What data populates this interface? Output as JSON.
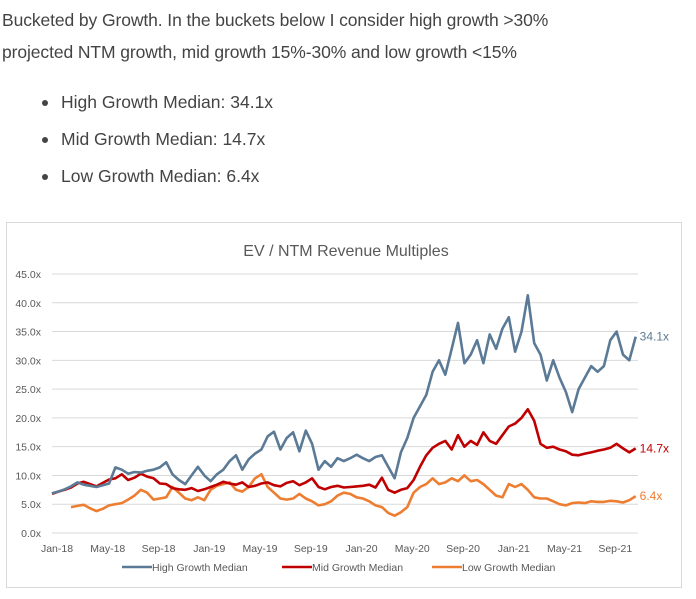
{
  "intro": {
    "line1": "Bucketed by Growth. In the buckets below I consider high growth >30%",
    "line2": "projected NTM growth, mid growth 15%-30% and low growth <15%"
  },
  "bullets": [
    "High Growth Median: 34.1x",
    "Mid Growth Median: 14.7x",
    "Low Growth Median: 6.4x"
  ],
  "chart_data": {
    "type": "line",
    "title": "EV / NTM Revenue Multiples",
    "xlabel": "",
    "ylabel": "",
    "ylim": [
      0,
      45
    ],
    "yticks": [
      "0.0x",
      "5.0x",
      "10.0x",
      "15.0x",
      "20.0x",
      "25.0x",
      "30.0x",
      "35.0x",
      "40.0x",
      "45.0x"
    ],
    "ytick_values": [
      0,
      5,
      10,
      15,
      20,
      25,
      30,
      35,
      40,
      45
    ],
    "xticks": [
      "Jan-18",
      "May-18",
      "Sep-18",
      "Jan-19",
      "May-19",
      "Sep-19",
      "Jan-20",
      "May-20",
      "Sep-20",
      "Jan-21",
      "May-21",
      "Sep-21"
    ],
    "xtick_months": [
      0,
      4,
      8,
      12,
      16,
      20,
      24,
      28,
      32,
      36,
      40,
      44
    ],
    "x_range_months": [
      0,
      46.5
    ],
    "grid": true,
    "legend_position": "bottom",
    "x_unit": "months since Jan-2018",
    "x": [
      0,
      0.5,
      1,
      1.5,
      2,
      2.5,
      3,
      3.5,
      4,
      4.5,
      5,
      5.5,
      6,
      6.5,
      7,
      7.5,
      8,
      8.5,
      9,
      9.5,
      10,
      10.5,
      11,
      11.5,
      12,
      12.5,
      13,
      13.5,
      14,
      14.5,
      15,
      15.5,
      16,
      16.5,
      17,
      17.5,
      18,
      18.5,
      19,
      19.5,
      20,
      20.5,
      21,
      21.5,
      22,
      22.5,
      23,
      23.5,
      24,
      24.5,
      25,
      25.5,
      26,
      26.5,
      27,
      27.5,
      28,
      28.5,
      29,
      29.5,
      30,
      30.5,
      31,
      31.5,
      32,
      32.5,
      33,
      33.5,
      34,
      34.5,
      35,
      35.5,
      36,
      36.5,
      37,
      37.5,
      38,
      38.5,
      39,
      39.5,
      40,
      40.5,
      41,
      41.5,
      42,
      42.5,
      43,
      43.5,
      44,
      44.5,
      45,
      45.5,
      46
    ],
    "series": [
      {
        "name": "High Growth Median",
        "color": "#5b7a95",
        "end_label": "34.1x",
        "values": [
          6.9,
          7.2,
          7.6,
          8.1,
          8.8,
          8.4,
          8.2,
          8.0,
          8.3,
          8.6,
          11.4,
          11.0,
          10.3,
          10.6,
          10.5,
          10.8,
          11.0,
          11.4,
          12.3,
          10.2,
          9.2,
          8.5,
          10.0,
          11.5,
          10.0,
          9.0,
          10.2,
          11.0,
          12.5,
          13.5,
          11.0,
          12.8,
          13.8,
          14.5,
          16.8,
          17.6,
          14.5,
          16.5,
          17.5,
          14.2,
          17.8,
          15.5,
          11.0,
          12.5,
          11.5,
          13.0,
          12.5,
          13.0,
          13.6,
          13.0,
          12.5,
          13.2,
          13.5,
          11.5,
          9.5,
          14.0,
          16.5,
          20.0,
          22.0,
          24.0,
          28.0,
          30.0,
          27.5,
          32.0,
          36.5,
          29.5,
          31.0,
          33.5,
          29.5,
          34.5,
          32.0,
          35.5,
          37.5,
          31.5,
          35.0,
          41.3,
          33.0,
          31.0,
          26.5,
          30.0,
          27.0,
          24.5,
          21.0,
          25.0,
          27.0,
          29.0,
          28.0,
          29.0,
          33.5,
          35.0,
          31.0,
          30.0,
          34.1
        ]
      },
      {
        "name": "Mid Growth Median",
        "color": "#c00000",
        "end_label": "14.7x",
        "values": [
          6.8,
          7.2,
          7.5,
          7.9,
          8.6,
          8.9,
          8.5,
          8.1,
          8.7,
          9.3,
          9.5,
          10.2,
          9.2,
          9.6,
          10.3,
          9.8,
          9.5,
          8.6,
          8.5,
          7.8,
          7.6,
          7.5,
          7.8,
          7.3,
          7.6,
          8.0,
          8.4,
          8.9,
          8.6,
          8.4,
          8.8,
          8.0,
          8.2,
          8.6,
          8.8,
          8.3,
          8.1,
          8.7,
          9.0,
          8.3,
          8.8,
          9.5,
          8.0,
          7.6,
          8.0,
          8.2,
          7.9,
          8.0,
          8.1,
          8.2,
          8.4,
          7.9,
          9.6,
          7.5,
          7.0,
          7.5,
          7.8,
          9.2,
          11.5,
          13.5,
          14.8,
          15.5,
          16.0,
          14.5,
          17.0,
          15.0,
          16.0,
          15.3,
          17.5,
          16.0,
          15.5,
          17.0,
          18.5,
          19.0,
          20.0,
          21.5,
          19.5,
          15.5,
          14.8,
          15.0,
          14.5,
          14.2,
          13.6,
          13.5,
          13.8,
          14.0,
          14.3,
          14.5,
          14.8,
          15.5,
          14.7,
          14.0,
          14.7
        ]
      },
      {
        "name": "Low Growth Median",
        "color": "#ed7d31",
        "end_label": "6.4x",
        "values": [
          null,
          null,
          null,
          4.5,
          4.7,
          4.9,
          4.3,
          3.8,
          4.2,
          4.8,
          5.0,
          5.2,
          5.8,
          6.5,
          7.5,
          7.0,
          5.8,
          6.0,
          6.2,
          8.0,
          7.0,
          6.0,
          5.7,
          6.2,
          5.7,
          7.5,
          8.2,
          8.5,
          8.8,
          7.5,
          7.2,
          8.0,
          9.5,
          10.2,
          8.0,
          7.0,
          6.0,
          5.8,
          6.0,
          6.8,
          6.0,
          5.5,
          4.8,
          5.0,
          5.5,
          6.5,
          7.0,
          6.8,
          6.2,
          6.0,
          5.5,
          4.8,
          4.5,
          3.5,
          3.0,
          3.6,
          4.5,
          7.0,
          8.0,
          8.5,
          9.5,
          8.5,
          8.8,
          9.5,
          9.0,
          10.0,
          9.0,
          9.2,
          8.5,
          7.5,
          6.5,
          6.2,
          8.5,
          8.0,
          8.5,
          7.5,
          6.2,
          6.0,
          6.0,
          5.5,
          5.0,
          4.8,
          5.2,
          5.3,
          5.2,
          5.5,
          5.4,
          5.4,
          5.6,
          5.5,
          5.3,
          5.7,
          6.4
        ]
      }
    ]
  }
}
